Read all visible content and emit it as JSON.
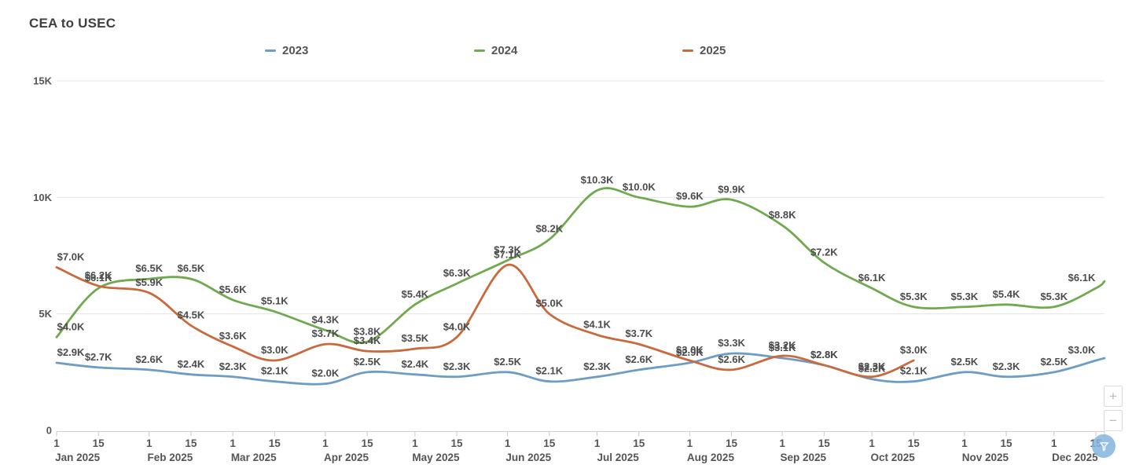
{
  "title": "CEA to USEC",
  "legend": [
    {
      "label": "2023",
      "color": "#6d9dc5"
    },
    {
      "label": "2024",
      "color": "#70aa4f"
    },
    {
      "label": "2025",
      "color": "#c96a3e"
    }
  ],
  "controls": {
    "zoom_in_label": "+",
    "zoom_out_label": "−"
  },
  "filter_badge": {
    "icon": "funnel-icon",
    "color": "#84b4e0"
  },
  "chart_data": {
    "type": "line",
    "title": "CEA to USEC",
    "x_months": [
      "Jan 2025",
      "Feb 2025",
      "Mar 2025",
      "Apr 2025",
      "May 2025",
      "Jun 2025",
      "Jul 2025",
      "Aug 2025",
      "Sep 2025",
      "Oct 2025",
      "Nov 2025",
      "Dec 2025"
    ],
    "tick_days": [
      "1",
      "15"
    ],
    "y_ticks": [
      {
        "label": "0",
        "value": 0
      },
      {
        "label": "5K",
        "value": 5000
      },
      {
        "label": "10K",
        "value": 10000
      },
      {
        "label": "15K",
        "value": 15000
      }
    ],
    "ylim": [
      0,
      15000
    ],
    "grid": true,
    "legend_position": "top",
    "series": [
      {
        "name": "2023",
        "color": "#6d9dc5",
        "values": [
          2900,
          2700,
          2600,
          2400,
          2300,
          2100,
          2000,
          2500,
          2400,
          2300,
          2500,
          2100,
          2300,
          2600,
          2900,
          3300,
          3100,
          2800,
          2200,
          2100,
          2500,
          2300,
          2500,
          3000
        ],
        "labels": [
          "$2.9K",
          "$2.7K",
          "$2.6K",
          "$2.4K",
          "$2.3K",
          "$2.1K",
          "$2.0K",
          "$2.5K",
          "$2.4K",
          "$2.3K",
          "$2.5K",
          "$2.1K",
          "$2.3K",
          "$2.6K",
          "$2.9K",
          "$3.3K",
          "$3.1K",
          "$2.8K",
          "$2.2K",
          "$2.1K",
          "$2.5K",
          "$2.3K",
          "$2.5K",
          "$3.0K"
        ],
        "right_edge_value": 3100
      },
      {
        "name": "2024",
        "color": "#70aa4f",
        "values": [
          4000,
          6100,
          6500,
          6500,
          5600,
          5100,
          4300,
          3800,
          5400,
          6300,
          7300,
          8200,
          10300,
          10000,
          9600,
          9900,
          8800,
          7200,
          6100,
          5300,
          5300,
          5400,
          5300,
          6100
        ],
        "labels": [
          "$4.0K",
          "$6.1K",
          "$6.5K",
          "$6.5K",
          "$5.6K",
          "$5.1K",
          "$4.3K",
          "$3.8K",
          "$5.4K",
          "$6.3K",
          "$7.3K",
          "$8.2K",
          "$10.3K",
          "$10.0K",
          "$9.6K",
          "$9.9K",
          "$8.8K",
          "$7.2K",
          "$6.1K",
          "$5.3K",
          "$5.3K",
          "$5.4K",
          "$5.3K",
          "$6.1K"
        ],
        "right_edge_value": 6400
      },
      {
        "name": "2025",
        "color": "#c96a3e",
        "values": [
          7000,
          6200,
          5900,
          4500,
          3600,
          3000,
          3700,
          3400,
          3500,
          4000,
          7100,
          5000,
          4100,
          3700,
          3000,
          2600,
          3200,
          2800,
          2300,
          3000
        ],
        "labels": [
          "$7.0K",
          "$6.2K",
          "$5.9K",
          "$4.5K",
          "$3.6K",
          "$3.0K",
          "$3.7K",
          "$3.4K",
          "$3.5K",
          "$4.0K",
          "$7.1K",
          "$5.0K",
          "$4.1K",
          "$3.7K",
          "$3.0K",
          "$2.6K",
          "$3.2K",
          "$2.8K",
          "$2.3K",
          "$3.0K"
        ],
        "right_edge_value": null
      }
    ]
  }
}
